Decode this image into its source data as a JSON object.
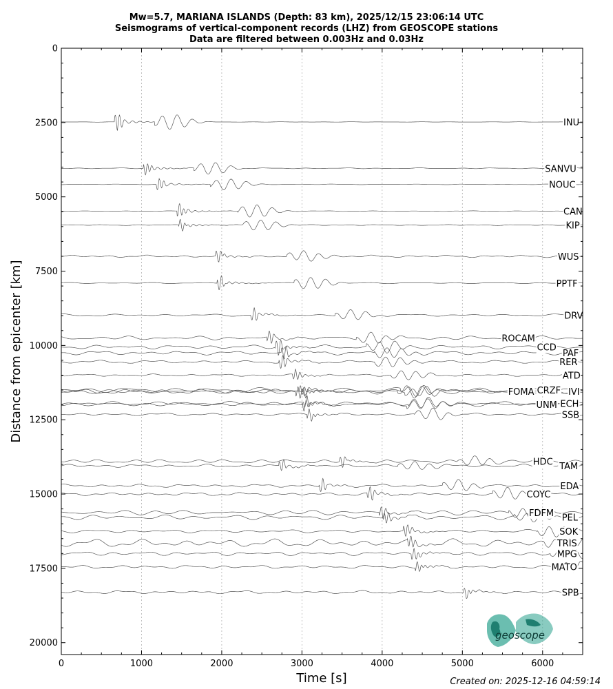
{
  "chart_data": {
    "type": "line",
    "title_lines": [
      "Mw=5.7, MARIANA ISLANDS (Depth: 83 km), 2025/12/15 23:06:14 UTC",
      "Seismograms of vertical-component records (LHZ) from GEOSCOPE stations",
      "Data are filtered between 0.003Hz and 0.03Hz"
    ],
    "xlabel": "Time [s]",
    "ylabel": "Distance from epicenter [km]",
    "xlim": [
      0,
      6500
    ],
    "ylim": [
      20400,
      0
    ],
    "x_ticks": [
      0,
      1000,
      2000,
      3000,
      4000,
      5000,
      6000
    ],
    "y_ticks": [
      0,
      2500,
      5000,
      7500,
      10000,
      12500,
      15000,
      17500,
      20000
    ],
    "grid": "vertical-dotted",
    "stations": [
      {
        "name": "INU",
        "distance": 2480,
        "arrival": 700,
        "amp": 3.0,
        "noise": 0.05,
        "label_time": 6260
      },
      {
        "name": "SANVU",
        "distance": 4040,
        "arrival": 1060,
        "amp": 2.4,
        "noise": 0.12,
        "label_time": 6030
      },
      {
        "name": "NOUC",
        "distance": 4580,
        "arrival": 1220,
        "amp": 2.3,
        "noise": 0.08,
        "label_time": 6080
      },
      {
        "name": "CAN",
        "distance": 5480,
        "arrival": 1480,
        "amp": 2.6,
        "noise": 0.08,
        "label_time": 6260
      },
      {
        "name": "KIP",
        "distance": 5950,
        "arrival": 1500,
        "amp": 2.2,
        "noise": 0.12,
        "label_time": 6290
      },
      {
        "name": "WUS",
        "distance": 7000,
        "arrival": 1960,
        "amp": 2.2,
        "noise": 0.3,
        "label_time": 6190
      },
      {
        "name": "PPTF",
        "distance": 7900,
        "arrival": 1980,
        "amp": 2.4,
        "noise": 0.15,
        "label_time": 6170
      },
      {
        "name": "DRV",
        "distance": 8980,
        "arrival": 2400,
        "amp": 2.0,
        "noise": 0.3,
        "label_time": 6270
      },
      {
        "name": "ROCAM",
        "distance": 9750,
        "arrival": 2600,
        "amp": 2.0,
        "noise": 0.5,
        "label_time": 5490
      },
      {
        "name": "CCD",
        "distance": 10050,
        "arrival": 2700,
        "amp": 2.4,
        "noise": 0.5,
        "label_time": 5930
      },
      {
        "name": "PAF",
        "distance": 10250,
        "arrival": 2780,
        "amp": 2.2,
        "noise": 0.5,
        "label_time": 6250
      },
      {
        "name": "RER",
        "distance": 10550,
        "arrival": 2750,
        "amp": 2.2,
        "noise": 0.4,
        "label_time": 6210
      },
      {
        "name": "ATD",
        "distance": 11000,
        "arrival": 2920,
        "amp": 2.0,
        "noise": 0.3,
        "label_time": 6250
      },
      {
        "name": "FOMA",
        "distance": 11550,
        "arrival": 2960,
        "amp": 2.2,
        "noise": 0.6,
        "label_time": 5570
      },
      {
        "name": "CRZF",
        "distance": 11500,
        "arrival": 3000,
        "amp": 2.0,
        "noise": 0.6,
        "label_time": 5930
      },
      {
        "name": "IVI",
        "distance": 11550,
        "arrival": 3050,
        "amp": 2.0,
        "noise": 0.5,
        "label_time": 6320
      },
      {
        "name": "UNM",
        "distance": 11980,
        "arrival": 3040,
        "amp": 2.2,
        "noise": 0.5,
        "label_time": 5920
      },
      {
        "name": "ECH",
        "distance": 11950,
        "arrival": 3060,
        "amp": 2.2,
        "noise": 0.5,
        "label_time": 6220
      },
      {
        "name": "SSB",
        "distance": 12320,
        "arrival": 3100,
        "amp": 2.2,
        "noise": 0.35,
        "label_time": 6240
      },
      {
        "name": "HDC",
        "distance": 13900,
        "arrival": 3500,
        "amp": 1.8,
        "noise": 0.5,
        "label_time": 5880
      },
      {
        "name": "TAM",
        "distance": 14050,
        "arrival": 2750,
        "amp": 1.8,
        "noise": 0.4,
        "label_time": 6210
      },
      {
        "name": "EDA",
        "distance": 14720,
        "arrival": 3250,
        "amp": 2.0,
        "noise": 0.4,
        "label_time": 6220
      },
      {
        "name": "COYC",
        "distance": 15000,
        "arrival": 3850,
        "amp": 2.2,
        "noise": 0.4,
        "label_time": 5800
      },
      {
        "name": "FDFM",
        "distance": 15620,
        "arrival": 4000,
        "amp": 2.0,
        "noise": 0.6,
        "label_time": 5830
      },
      {
        "name": "PEL",
        "distance": 15780,
        "arrival": 4050,
        "amp": 2.0,
        "noise": 0.6,
        "label_time": 6240
      },
      {
        "name": "SOK",
        "distance": 16250,
        "arrival": 4300,
        "amp": 2.2,
        "noise": 0.4,
        "label_time": 6210
      },
      {
        "name": "TRIS",
        "distance": 16650,
        "arrival": 4350,
        "amp": 2.4,
        "noise": 1.0,
        "label_time": 6180
      },
      {
        "name": "MPG",
        "distance": 17000,
        "arrival": 4400,
        "amp": 2.3,
        "noise": 0.5,
        "label_time": 6180
      },
      {
        "name": "MATO",
        "distance": 17450,
        "arrival": 4450,
        "amp": 2.2,
        "noise": 0.4,
        "label_time": 6110
      },
      {
        "name": "SPB",
        "distance": 18300,
        "arrival": 5050,
        "amp": 2.0,
        "noise": 0.4,
        "label_time": 6240
      }
    ]
  },
  "logo": {
    "text": "geoscope",
    "color": "#2a9d8f"
  },
  "footer": {
    "created": "Created on: 2025-12-16 04:59:14"
  }
}
